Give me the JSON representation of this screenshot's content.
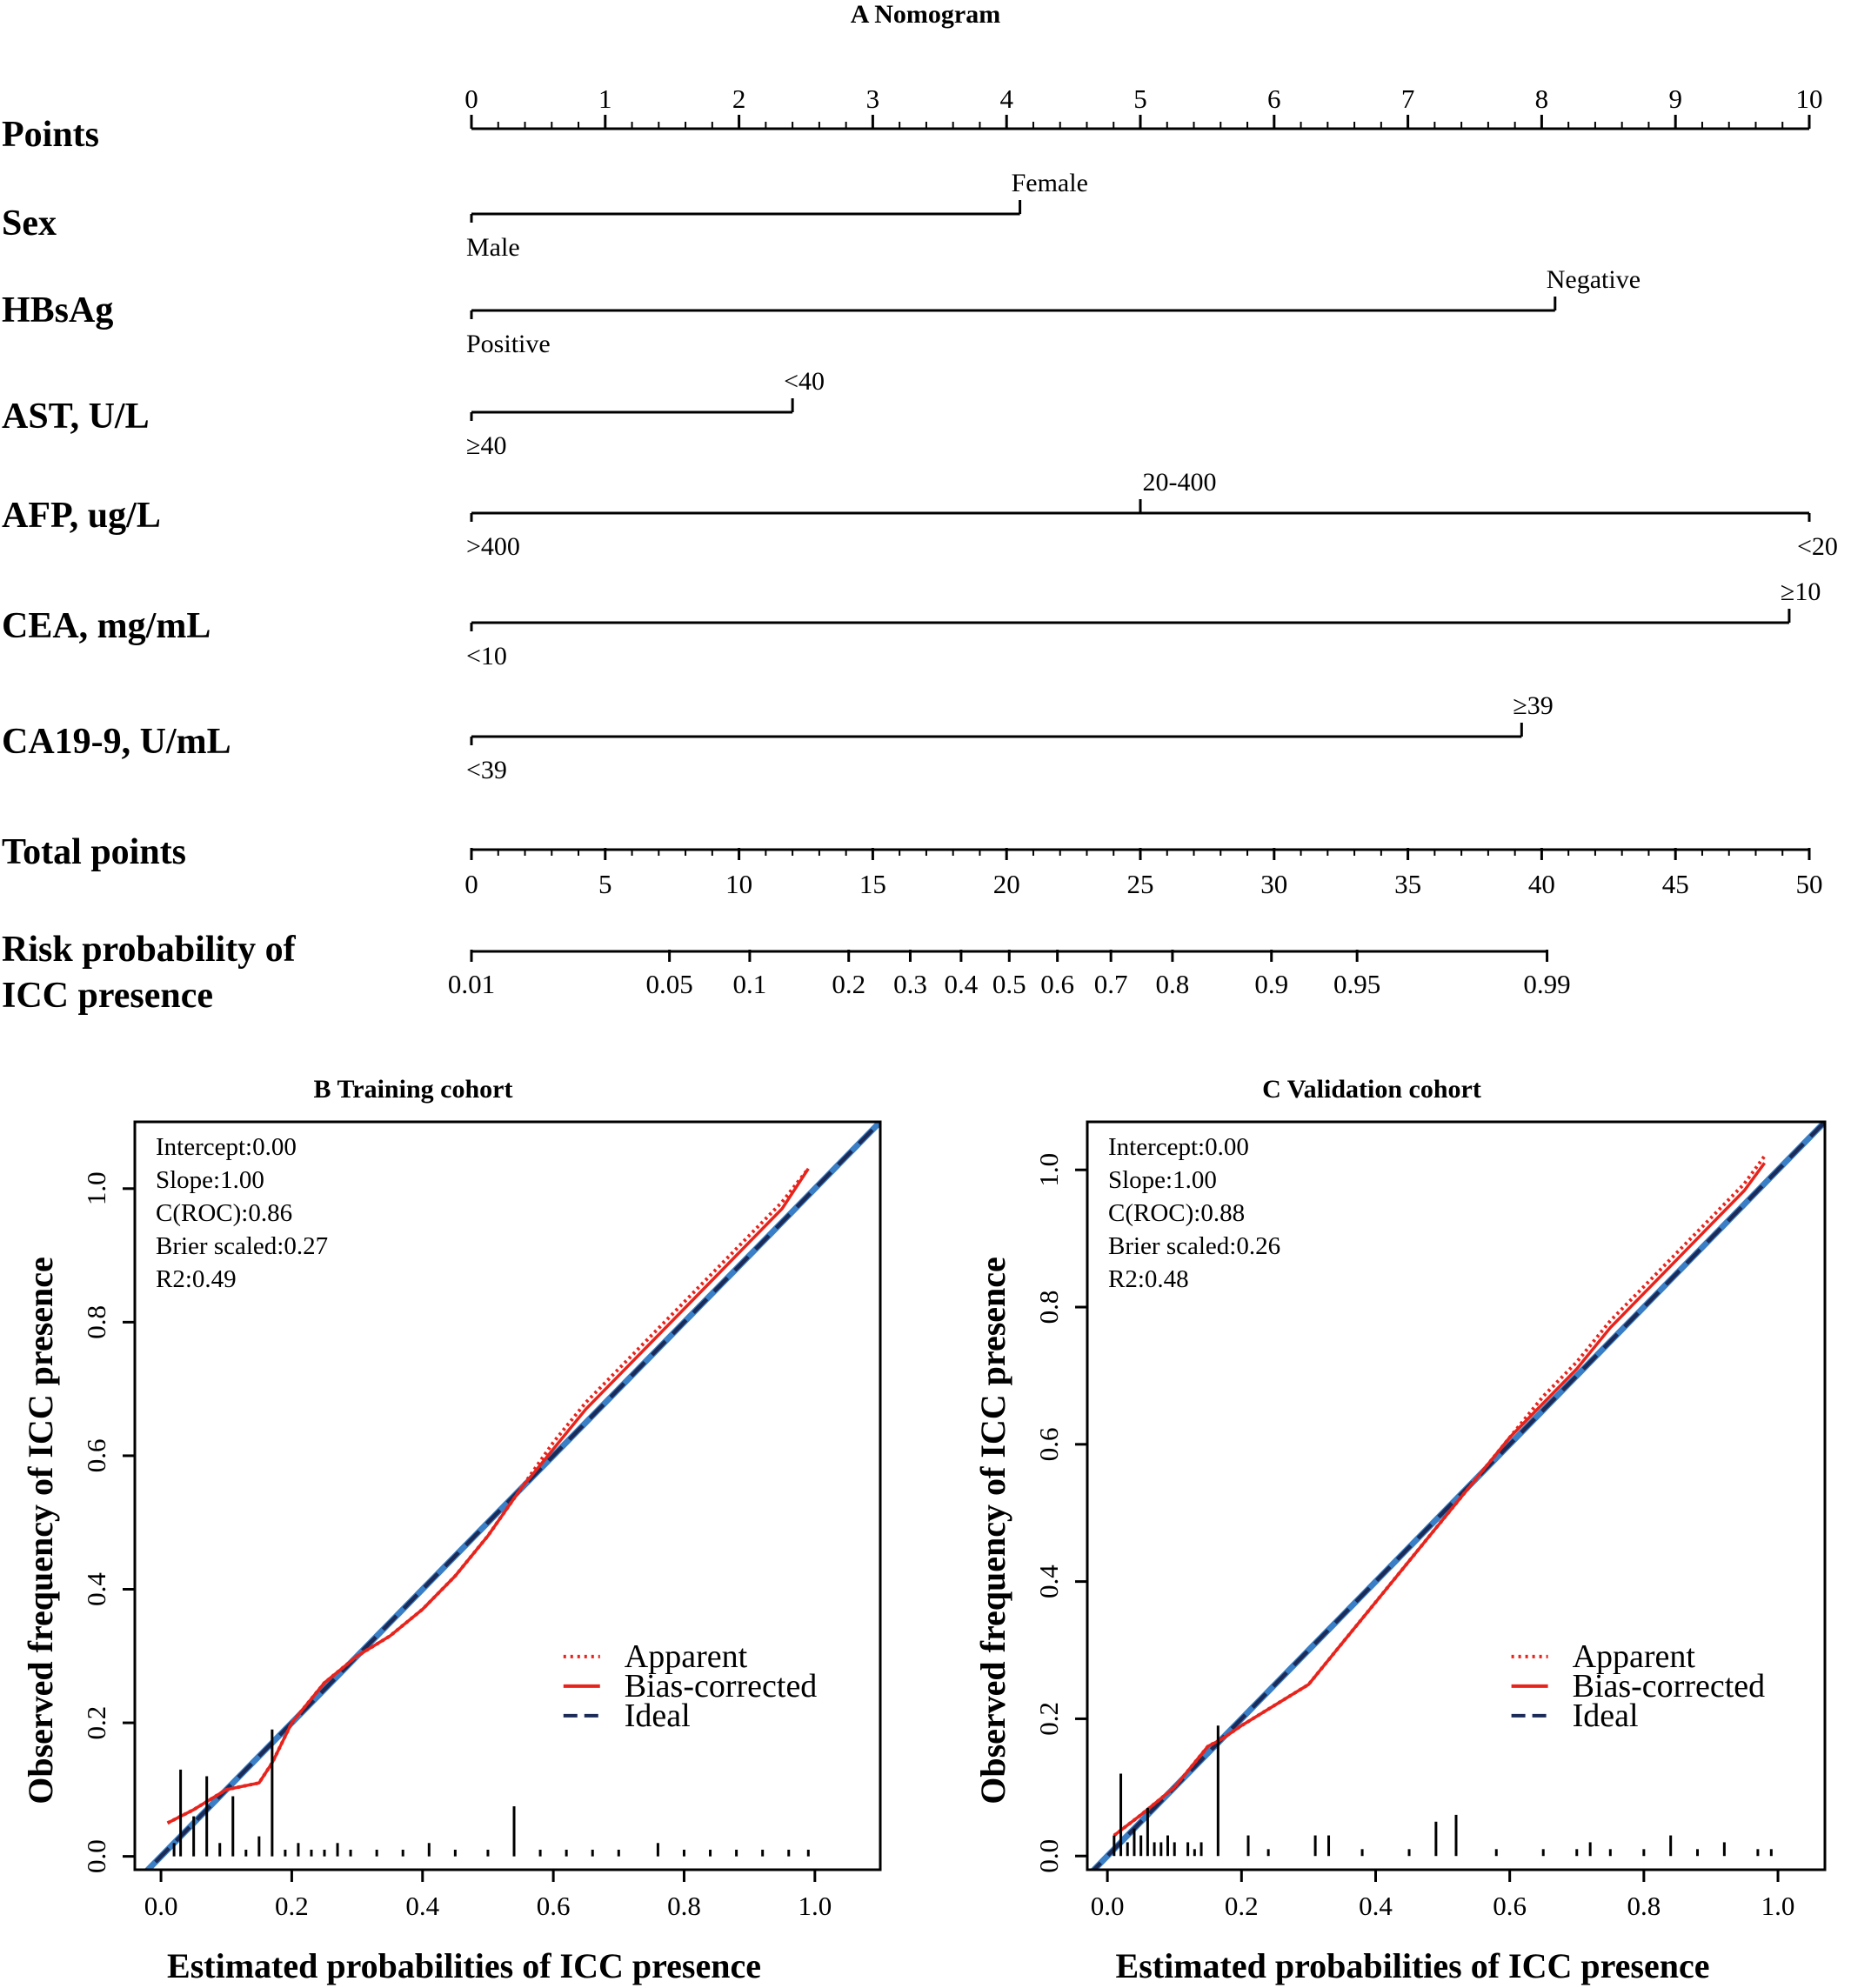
{
  "figure": {
    "panel_a_title": "A  Nomogram",
    "panel_b_title": "B  Training cohort",
    "panel_c_title": "C  Validation cohort"
  },
  "chart_data": [
    {
      "type": "nomogram",
      "title": "A  Nomogram",
      "points_axis": {
        "label": "Points",
        "range": [
          0,
          10
        ],
        "ticks": [
          0,
          1,
          2,
          3,
          4,
          5,
          6,
          7,
          8,
          9,
          10
        ],
        "tick_labels": [
          "0",
          "1",
          "2",
          "3",
          "4",
          "5",
          "6",
          "7",
          "8",
          "9",
          "10"
        ]
      },
      "variables": [
        {
          "label": "Sex",
          "levels": [
            {
              "name": "Male",
              "points": 0
            },
            {
              "name": "Female",
              "points": 4.1
            }
          ]
        },
        {
          "label": "HBsAg",
          "levels": [
            {
              "name": "Positive",
              "points": 0
            },
            {
              "name": "Negative",
              "points": 8.1
            }
          ]
        },
        {
          "label": "AST, U/L",
          "levels": [
            {
              "name": "≥40",
              "points": 0
            },
            {
              "name": "<40",
              "points": 2.4
            }
          ]
        },
        {
          "label": "AFP, ug/L",
          "levels": [
            {
              "name": ">400",
              "points": 0
            },
            {
              "name": "20-400",
              "points": 5.0
            },
            {
              "name": "<20",
              "points": 10.0
            }
          ]
        },
        {
          "label": "CEA, mg/mL",
          "levels": [
            {
              "name": "<10",
              "points": 0
            },
            {
              "name": "≥10",
              "points": 9.85
            }
          ]
        },
        {
          "label": "CA19-9, U/mL",
          "levels": [
            {
              "name": "<39",
              "points": 0
            },
            {
              "name": "≥39",
              "points": 7.85
            }
          ]
        }
      ],
      "total_points_axis": {
        "label": "Total points",
        "range": [
          0,
          50
        ],
        "ticks": [
          0,
          5,
          10,
          15,
          20,
          25,
          30,
          35,
          40,
          45,
          50
        ],
        "tick_labels": [
          "0",
          "5",
          "10",
          "15",
          "20",
          "25",
          "30",
          "35",
          "40",
          "45",
          "50"
        ]
      },
      "risk_axis": {
        "label_lines": [
          "Risk probability of",
          "ICC presence"
        ],
        "ticks": [
          {
            "label": "0.01",
            "total_points": 0
          },
          {
            "label": "0.05",
            "total_points": 7.4
          },
          {
            "label": "0.1",
            "total_points": 10.4
          },
          {
            "label": "0.2",
            "total_points": 14.1
          },
          {
            "label": "0.3",
            "total_points": 16.4
          },
          {
            "label": "0.4",
            "total_points": 18.3
          },
          {
            "label": "0.5",
            "total_points": 20.1
          },
          {
            "label": "0.6",
            "total_points": 21.9
          },
          {
            "label": "0.7",
            "total_points": 23.9
          },
          {
            "label": "0.8",
            "total_points": 26.2
          },
          {
            "label": "0.9",
            "total_points": 29.9
          },
          {
            "label": "0.95",
            "total_points": 33.1
          },
          {
            "label": "0.99",
            "total_points": 40.2
          }
        ]
      }
    },
    {
      "type": "line",
      "title": "B  Training cohort",
      "xlabel": "Estimated probabilities of ICC presence",
      "ylabel": "Observed frequency of ICC presence",
      "xlim": [
        -0.04,
        1.1
      ],
      "ylim": [
        -0.02,
        1.1
      ],
      "xticks": [
        0.0,
        0.2,
        0.4,
        0.6,
        0.8,
        1.0
      ],
      "xtick_labels": [
        "0.0",
        "0.2",
        "0.4",
        "0.6",
        "0.8",
        "1.0"
      ],
      "yticks": [
        0.0,
        0.2,
        0.4,
        0.6,
        0.8,
        1.0
      ],
      "ytick_labels": [
        "0.0",
        "0.2",
        "0.4",
        "0.6",
        "0.8",
        "1.0"
      ],
      "stats": [
        "Intercept:0.00",
        "Slope:1.00",
        "C(ROC):0.86",
        "Brier scaled:0.27",
        "R2:0.49"
      ],
      "legend": [
        "Apparent",
        "Bias-corrected",
        "Ideal"
      ],
      "legend_position": "center-right",
      "series": [
        {
          "name": "Apparent",
          "color": "#e8231c",
          "style": "dotted",
          "x": [
            0.01,
            0.05,
            0.1,
            0.15,
            0.17,
            0.2,
            0.25,
            0.3,
            0.35,
            0.4,
            0.45,
            0.5,
            0.55,
            0.6,
            0.65,
            0.7,
            0.75,
            0.8,
            0.85,
            0.9,
            0.95,
            0.99
          ],
          "y": [
            0.05,
            0.07,
            0.1,
            0.11,
            0.14,
            0.2,
            0.26,
            0.3,
            0.33,
            0.37,
            0.42,
            0.48,
            0.55,
            0.62,
            0.68,
            0.73,
            0.78,
            0.83,
            0.88,
            0.93,
            0.98,
            1.03
          ]
        },
        {
          "name": "Bias-corrected",
          "color": "#e8231c",
          "style": "solid",
          "x": [
            0.01,
            0.05,
            0.1,
            0.15,
            0.17,
            0.2,
            0.25,
            0.3,
            0.35,
            0.4,
            0.45,
            0.5,
            0.55,
            0.6,
            0.65,
            0.7,
            0.75,
            0.8,
            0.85,
            0.9,
            0.95,
            0.99
          ],
          "y": [
            0.05,
            0.07,
            0.1,
            0.11,
            0.14,
            0.2,
            0.26,
            0.3,
            0.33,
            0.37,
            0.42,
            0.48,
            0.55,
            0.61,
            0.67,
            0.72,
            0.77,
            0.82,
            0.87,
            0.92,
            0.97,
            1.03
          ]
        },
        {
          "name": "Ideal",
          "color": "#1b2a57",
          "style": "dashed",
          "x": [
            -0.04,
            1.1
          ],
          "y": [
            -0.04,
            1.1
          ]
        }
      ],
      "rug": {
        "x": [
          0.02,
          0.03,
          0.05,
          0.07,
          0.09,
          0.11,
          0.13,
          0.15,
          0.17,
          0.19,
          0.21,
          0.23,
          0.25,
          0.27,
          0.29,
          0.33,
          0.37,
          0.41,
          0.45,
          0.5,
          0.54,
          0.58,
          0.62,
          0.66,
          0.7,
          0.76,
          0.8,
          0.84,
          0.88,
          0.92,
          0.96,
          0.99
        ],
        "height": [
          0.02,
          0.13,
          0.06,
          0.12,
          0.02,
          0.09,
          0.01,
          0.03,
          0.19,
          0.01,
          0.02,
          0.01,
          0.01,
          0.02,
          0.01,
          0.01,
          0.01,
          0.02,
          0.01,
          0.01,
          0.075,
          0.01,
          0.01,
          0.01,
          0.01,
          0.02,
          0.01,
          0.01,
          0.01,
          0.01,
          0.01,
          0.01
        ]
      }
    },
    {
      "type": "line",
      "title": "C  Validation cohort",
      "xlabel": "Estimated probabilities of ICC presence",
      "ylabel": "Observed frequency of ICC presence",
      "xlim": [
        -0.03,
        1.07
      ],
      "ylim": [
        -0.02,
        1.07
      ],
      "xticks": [
        0.0,
        0.2,
        0.4,
        0.6,
        0.8,
        1.0
      ],
      "xtick_labels": [
        "0.0",
        "0.2",
        "0.4",
        "0.6",
        "0.8",
        "1.0"
      ],
      "yticks": [
        0.0,
        0.2,
        0.4,
        0.6,
        0.8,
        1.0
      ],
      "ytick_labels": [
        "0.0",
        "0.2",
        "0.4",
        "0.6",
        "0.8",
        "1.0"
      ],
      "stats": [
        "Intercept:0.00",
        "Slope:1.00",
        "C(ROC):0.88",
        "Brier scaled:0.26",
        "R2:0.48"
      ],
      "legend": [
        "Apparent",
        "Bias-corrected",
        "Ideal"
      ],
      "legend_position": "center-right",
      "series": [
        {
          "name": "Apparent",
          "color": "#e8231c",
          "style": "dotted",
          "x": [
            0.01,
            0.05,
            0.1,
            0.15,
            0.17,
            0.2,
            0.25,
            0.3,
            0.35,
            0.4,
            0.45,
            0.5,
            0.55,
            0.6,
            0.65,
            0.7,
            0.75,
            0.8,
            0.85,
            0.9,
            0.95,
            0.98
          ],
          "y": [
            0.03,
            0.06,
            0.1,
            0.16,
            0.17,
            0.19,
            0.22,
            0.25,
            0.31,
            0.37,
            0.43,
            0.49,
            0.55,
            0.61,
            0.67,
            0.72,
            0.78,
            0.83,
            0.88,
            0.93,
            0.98,
            1.02
          ]
        },
        {
          "name": "Bias-corrected",
          "color": "#e8231c",
          "style": "solid",
          "x": [
            0.01,
            0.05,
            0.1,
            0.15,
            0.17,
            0.2,
            0.25,
            0.3,
            0.35,
            0.4,
            0.45,
            0.5,
            0.55,
            0.6,
            0.65,
            0.7,
            0.75,
            0.8,
            0.85,
            0.9,
            0.95,
            0.98
          ],
          "y": [
            0.03,
            0.06,
            0.1,
            0.16,
            0.17,
            0.19,
            0.22,
            0.25,
            0.31,
            0.37,
            0.43,
            0.49,
            0.55,
            0.61,
            0.66,
            0.71,
            0.77,
            0.82,
            0.87,
            0.92,
            0.97,
            1.01
          ]
        },
        {
          "name": "Ideal",
          "color": "#1b2a57",
          "style": "dashed",
          "x": [
            -0.03,
            1.07
          ],
          "y": [
            -0.03,
            1.07
          ]
        }
      ],
      "rug": {
        "x": [
          0.01,
          0.02,
          0.03,
          0.04,
          0.05,
          0.06,
          0.07,
          0.08,
          0.09,
          0.1,
          0.12,
          0.13,
          0.14,
          0.165,
          0.21,
          0.24,
          0.31,
          0.33,
          0.38,
          0.45,
          0.49,
          0.52,
          0.58,
          0.65,
          0.7,
          0.72,
          0.75,
          0.8,
          0.84,
          0.88,
          0.92,
          0.97,
          0.99
        ],
        "height": [
          0.03,
          0.12,
          0.02,
          0.04,
          0.03,
          0.07,
          0.02,
          0.02,
          0.03,
          0.02,
          0.02,
          0.01,
          0.02,
          0.19,
          0.03,
          0.01,
          0.03,
          0.03,
          0.01,
          0.01,
          0.05,
          0.06,
          0.01,
          0.01,
          0.01,
          0.02,
          0.01,
          0.01,
          0.03,
          0.01,
          0.02,
          0.01,
          0.01
        ]
      }
    }
  ]
}
